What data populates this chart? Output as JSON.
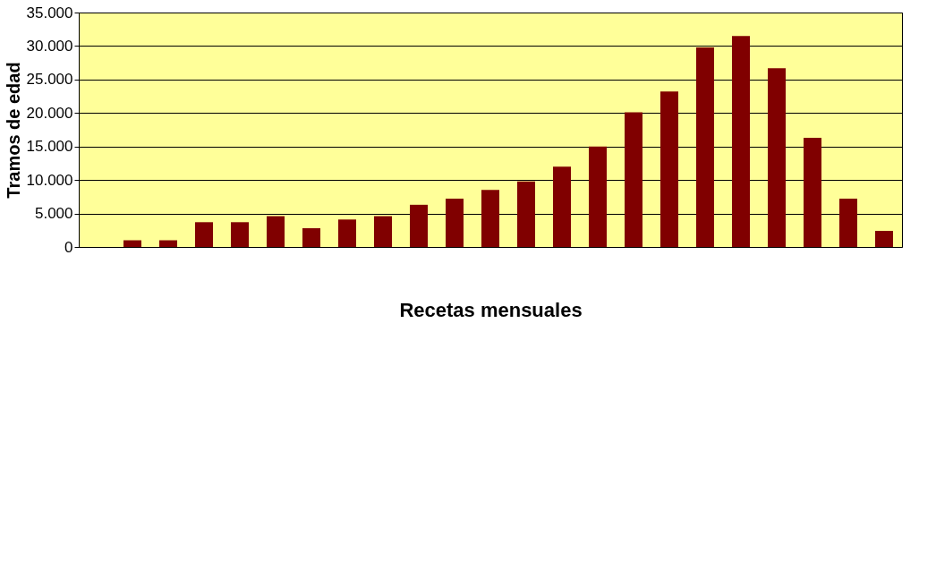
{
  "chart_data": {
    "type": "bar",
    "xlabel": "Recetas mensuales",
    "ylabel": "Tramos de edad",
    "categories": [
      null,
      null,
      null,
      null,
      null,
      null,
      null,
      null,
      null,
      null,
      null,
      null,
      null,
      null,
      null,
      null,
      null,
      null,
      null,
      null,
      null,
      null,
      null
    ],
    "values": [
      0,
      1000,
      1000,
      3700,
      3700,
      4600,
      2800,
      4100,
      4600,
      6300,
      7200,
      8500,
      9800,
      12000,
      15000,
      20100,
      23200,
      29800,
      31500,
      26700,
      16300,
      7200,
      2400
    ],
    "color": "#800000",
    "ylim": [
      0,
      35000
    ],
    "yticks": [
      {
        "value": 0,
        "label": "0"
      },
      {
        "value": 5000,
        "label": "5.000"
      },
      {
        "value": 10000,
        "label": "10.000"
      },
      {
        "value": 15000,
        "label": "15.000"
      },
      {
        "value": 20000,
        "label": "20.000"
      },
      {
        "value": 25000,
        "label": "25.000"
      },
      {
        "value": 30000,
        "label": "30.000"
      },
      {
        "value": 35000,
        "label": "35.000"
      }
    ],
    "grid": "y",
    "tick_labels": "y"
  }
}
